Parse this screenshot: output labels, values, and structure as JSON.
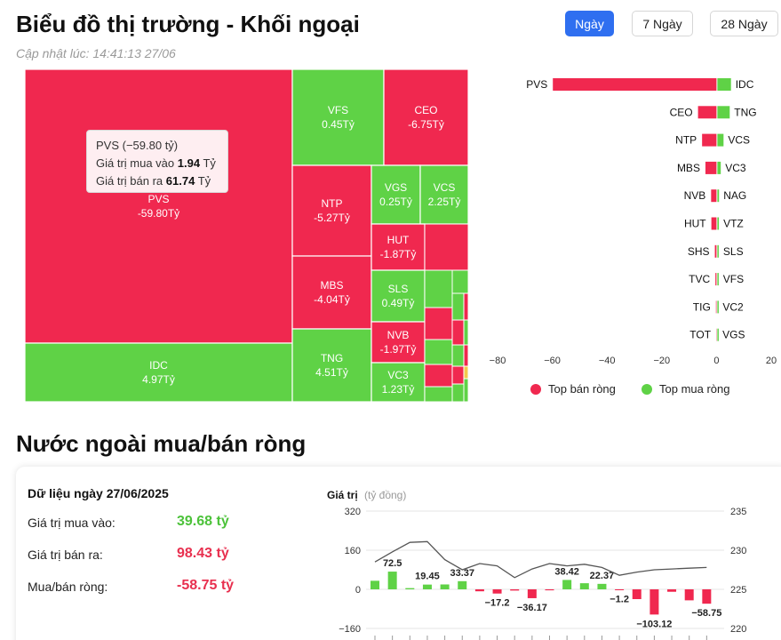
{
  "header": {
    "title": "Biểu đồ thị trường - Khối ngoại",
    "updated": "Cập nhật lúc: 14:41:13 27/06",
    "ranges": [
      {
        "label": "Ngày",
        "active": true
      },
      {
        "label": "7 Ngày",
        "active": false
      },
      {
        "label": "28 Ngày",
        "active": false
      }
    ]
  },
  "colors": {
    "buy": "#5fd246",
    "sell": "#f0284f",
    "accent": "#2f6ff0",
    "price_line": "#555555"
  },
  "treemap": {
    "tiles": [
      {
        "code": "PVS",
        "value": "-59.80Tỷ",
        "side": "sell"
      },
      {
        "code": "IDC",
        "value": "4.97Tỷ",
        "side": "buy"
      },
      {
        "code": "VFS",
        "value": "0.45Tỷ",
        "side": "buy"
      },
      {
        "code": "CEO",
        "value": "-6.75Tỷ",
        "side": "sell"
      },
      {
        "code": "NTP",
        "value": "-5.27Tỷ",
        "side": "sell"
      },
      {
        "code": "MBS",
        "value": "-4.04Tỷ",
        "side": "sell"
      },
      {
        "code": "TNG",
        "value": "4.51Tỷ",
        "side": "buy"
      },
      {
        "code": "VGS",
        "value": "0.25Tỷ",
        "side": "buy"
      },
      {
        "code": "VCS",
        "value": "2.25Tỷ",
        "side": "buy"
      },
      {
        "code": "HUT",
        "value": "-1.87Tỷ",
        "side": "sell"
      },
      {
        "code": "SLS",
        "value": "0.49Tỷ",
        "side": "buy"
      },
      {
        "code": "NVB",
        "value": "-1.97Tỷ",
        "side": "sell"
      },
      {
        "code": "VC3",
        "value": "1.23Tỷ",
        "side": "buy"
      }
    ],
    "tooltip": {
      "head": "PVS (−59.80 tỷ)",
      "buy_label": "Giá trị mua vào",
      "buy_value": "1.94",
      "sell_label": "Giá trị bán ra",
      "sell_value": "61.74",
      "unit": "Tỷ"
    }
  },
  "chart_data": [
    {
      "type": "bar",
      "orientation": "horizontal",
      "series": [
        {
          "name": "Top bán ròng",
          "categories": [
            "PVS",
            "CEO",
            "NTP",
            "MBS",
            "NVB",
            "HUT",
            "SHS",
            "TVC",
            "TIG",
            "TOT"
          ],
          "values": [
            -59.8,
            -6.75,
            -5.27,
            -4.04,
            -1.97,
            -1.87,
            -0.6,
            -0.4,
            -0.2,
            -0.1
          ]
        },
        {
          "name": "Top mua ròng",
          "categories": [
            "IDC",
            "TNG",
            "VCS",
            "VC3",
            "NAG",
            "VTZ",
            "SLS",
            "VFS",
            "VC2",
            "VGS"
          ],
          "values": [
            4.97,
            4.51,
            2.25,
            1.23,
            0.6,
            0.55,
            0.49,
            0.45,
            0.3,
            0.25
          ]
        }
      ],
      "xticks": [
        "−80",
        "−60",
        "−40",
        "−20",
        "0",
        "20"
      ],
      "xlim": [
        -80,
        20
      ],
      "legend": "bottom"
    },
    {
      "type": "bar",
      "series": [
        {
          "name": "net",
          "values": [
            35,
            72.5,
            5,
            19.45,
            20,
            33.37,
            -8,
            -17.2,
            -5,
            -36.17,
            -4,
            38.42,
            25,
            22.37,
            -1.2,
            -40,
            -103.12,
            -10,
            -45,
            -58.75
          ],
          "labels": [
            null,
            "72.5",
            null,
            "19.45",
            null,
            "33.37",
            null,
            "−17.2",
            null,
            "−36.17",
            null,
            "38.42",
            null,
            "22.37",
            "−1.2",
            null,
            "−103.12",
            null,
            null,
            "−58.75"
          ]
        },
        {
          "name": "price",
          "type": "line",
          "values": [
            228.5,
            229.8,
            231.0,
            231.1,
            228.8,
            227.5,
            228.3,
            228.0,
            226.5,
            227.6,
            228.3,
            228.0,
            228.2,
            227.8,
            226.8,
            227.2,
            227.5,
            227.6,
            227.7,
            227.8
          ]
        }
      ],
      "ylabel": "Giá trị",
      "ylabel_unit": "(tỷ đồng)",
      "yticks_left": [
        "320",
        "160",
        "0",
        "−160"
      ],
      "ylim_left": [
        -160,
        320
      ],
      "yticks_right": [
        "235",
        "230",
        "225",
        "220"
      ],
      "ylim_right": [
        220,
        235
      ],
      "grid": true
    }
  ],
  "summary": {
    "date": "Dữ liệu ngày 27/06/2025",
    "rows": [
      {
        "label": "Giá trị mua vào:",
        "value": "39.68 tỷ",
        "tone": "green"
      },
      {
        "label": "Giá trị bán ra:",
        "value": "98.43 tỷ",
        "tone": "red"
      },
      {
        "label": "Mua/bán ròng:",
        "value": "-58.75 tỷ",
        "tone": "red"
      }
    ]
  },
  "section2_title": "Nước ngoài mua/bán ròng"
}
